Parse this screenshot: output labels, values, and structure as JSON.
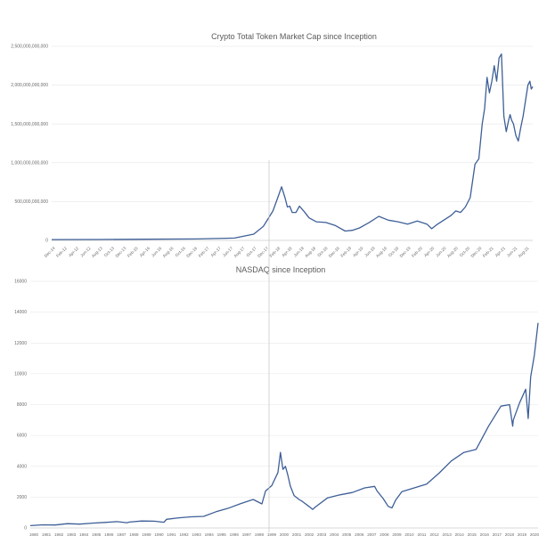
{
  "colors": {
    "line": "#3e5f97",
    "grid": "#e6e6e6",
    "divider": "#c9c9c9",
    "text": "#6a6a6a",
    "title": "#5a5a5a"
  },
  "chart_data": [
    {
      "type": "line",
      "title": "Crypto Total Token Market Cap since Inception",
      "xlabel": "",
      "ylabel": "",
      "ylim": [
        0,
        2500000000000
      ],
      "grid": true,
      "y_ticks": [
        {
          "value": 0,
          "label": "0"
        },
        {
          "value": 500000000000,
          "label": "500,000,000,000"
        },
        {
          "value": 1000000000000,
          "label": "1,000,000,000,000"
        },
        {
          "value": 1500000000000,
          "label": "1,500,000,000,000"
        },
        {
          "value": 2000000000000,
          "label": "2,000,000,000,000"
        },
        {
          "value": 2500000000000,
          "label": "2,500,000,000,000"
        }
      ],
      "xlim": [
        0,
        100
      ],
      "x_ticks": [
        "Dec-14",
        "Feb-12",
        "Apr-12",
        "Jun-12",
        "Aug-13",
        "Oct-13",
        "Dec-13",
        "Feb-15",
        "Apr-16",
        "Jun-16",
        "Aug-16",
        "Oct-16",
        "Dec-16",
        "Feb-17",
        "Apr-17",
        "Jun-17",
        "Aug-17",
        "Oct-17",
        "Dec-17",
        "Feb-18",
        "Apr-18",
        "Jun-18",
        "Aug-18",
        "Oct-18",
        "Dec-18",
        "Feb-19",
        "Apr-19",
        "Jun-19",
        "Aug-19",
        "Oct-19",
        "Dec-19",
        "Feb-20",
        "Apr-20",
        "Jun-20",
        "Aug-20",
        "Oct-20",
        "Dec-20",
        "Feb-21",
        "Apr-21",
        "Jun-21",
        "Aug-21"
      ],
      "series": [
        {
          "x": [
            0,
            10,
            20,
            30,
            38,
            42,
            44,
            45,
            46,
            47,
            47.8,
            48.5,
            49,
            49.5,
            50,
            50.8,
            51.5,
            52.5,
            53.5,
            55,
            57,
            59,
            61,
            62.5,
            64,
            66,
            68,
            70,
            72,
            74,
            76,
            78,
            79,
            80,
            81,
            82,
            83,
            84,
            85,
            86,
            87,
            88,
            88.8,
            89.5,
            90,
            90.5,
            91,
            91.5,
            92,
            92.5,
            93,
            93.5,
            94,
            94.5,
            95,
            95.3,
            95.6,
            96,
            96.5,
            97,
            97.5,
            98,
            98.5,
            99,
            99.4,
            99.7,
            100
          ],
          "y": [
            10000000000.0,
            12000000000.0,
            15000000000.0,
            18000000000.0,
            30000000000.0,
            80000000000.0,
            180000000000.0,
            280000000000.0,
            380000000000.0,
            550000000000.0,
            690000000000.0,
            550000000000.0,
            430000000000.0,
            440000000000.0,
            360000000000.0,
            360000000000.0,
            440000000000.0,
            370000000000.0,
            290000000000.0,
            240000000000.0,
            230000000000.0,
            190000000000.0,
            120000000000.0,
            130000000000.0,
            160000000000.0,
            230000000000.0,
            310000000000.0,
            260000000000.0,
            240000000000.0,
            210000000000.0,
            250000000000.0,
            210000000000.0,
            150000000000.0,
            200000000000.0,
            240000000000.0,
            280000000000.0,
            320000000000.0,
            380000000000.0,
            360000000000.0,
            430000000000.0,
            550000000000.0,
            980000000000.0,
            1050000000000.0,
            1500000000000.0,
            1700000000000.0,
            2100000000000.0,
            1900000000000.0,
            2050000000000.0,
            2250000000000.0,
            2050000000000.0,
            2350000000000.0,
            2400000000000.0,
            1600000000000.0,
            1400000000000.0,
            1550000000000.0,
            1620000000000.0,
            1550000000000.0,
            1500000000000.0,
            1350000000000.0,
            1280000000000.0,
            1450000000000.0,
            1600000000000.0,
            1800000000000.0,
            2000000000000.0,
            2050000000000.0,
            1950000000000.0,
            1980000000000.0
          ]
        }
      ]
    },
    {
      "type": "line",
      "title": "NASDAQ since Inception",
      "xlabel": "",
      "ylabel": "",
      "ylim": [
        0,
        16000
      ],
      "grid": true,
      "y_ticks": [
        {
          "value": 0,
          "label": "0"
        },
        {
          "value": 2000,
          "label": "2000"
        },
        {
          "value": 4000,
          "label": "4000"
        },
        {
          "value": 6000,
          "label": "6000"
        },
        {
          "value": 8000,
          "label": "8000"
        },
        {
          "value": 10000,
          "label": "10000"
        },
        {
          "value": 12000,
          "label": "12000"
        },
        {
          "value": 14000,
          "label": "14000"
        },
        {
          "value": 16000,
          "label": "16000"
        }
      ],
      "xlim": [
        1980,
        2021
      ],
      "x_ticks": [
        "1980",
        "1981",
        "1982",
        "1983",
        "1984",
        "1985",
        "1986",
        "1987",
        "1988",
        "1989",
        "1990",
        "1991",
        "1992",
        "1993",
        "1994",
        "1995",
        "1996",
        "1997",
        "1998",
        "1999",
        "2000",
        "2001",
        "2002",
        "2003",
        "2004",
        "2005",
        "2006",
        "2007",
        "2008",
        "2009",
        "2010",
        "2011",
        "2012",
        "2013",
        "2014",
        "2015",
        "2016",
        "2017",
        "2018",
        "2019",
        "2020"
      ],
      "series": [
        {
          "x": [
            1980,
            1981,
            1982,
            1983,
            1984,
            1985,
            1986,
            1987,
            1987.8,
            1988,
            1989,
            1990,
            1990.8,
            1991,
            1992,
            1993,
            1994,
            1995,
            1996,
            1997,
            1998,
            1998.7,
            1999,
            1999.5,
            2000,
            2000.2,
            2000.4,
            2000.6,
            2000.8,
            2001,
            2001.3,
            2001.7,
            2002,
            2002.5,
            2002.8,
            2003,
            2004,
            2005,
            2006,
            2007,
            2007.8,
            2008,
            2008.5,
            2008.9,
            2009.2,
            2009.5,
            2010,
            2011,
            2012,
            2013,
            2014,
            2015,
            2016,
            2017,
            2018,
            2018.7,
            2018.95,
            2019,
            2019.5,
            2020,
            2020.2,
            2020.4,
            2020.7,
            2021
          ],
          "y": [
            150,
            200,
            190,
            280,
            250,
            310,
            360,
            410,
            340,
            380,
            450,
            440,
            370,
            560,
            660,
            720,
            750,
            1050,
            1280,
            1580,
            1850,
            1560,
            2400,
            2750,
            3600,
            4900,
            3800,
            4000,
            3400,
            2700,
            2100,
            1850,
            1700,
            1400,
            1200,
            1350,
            1950,
            2150,
            2300,
            2600,
            2700,
            2400,
            1900,
            1400,
            1300,
            1800,
            2350,
            2600,
            2850,
            3550,
            4350,
            4900,
            5100,
            6600,
            7900,
            8000,
            6600,
            7000,
            8100,
            9000,
            7100,
            9800,
            11200,
            13300
          ]
        }
      ]
    }
  ]
}
